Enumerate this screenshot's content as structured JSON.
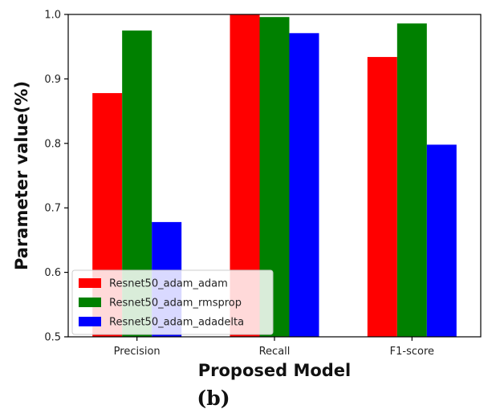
{
  "chart_data": {
    "type": "bar",
    "categories": [
      "Precision",
      "Recall",
      "F1-score"
    ],
    "series": [
      {
        "name": "Resnet50_adam_adam",
        "color": "#ff0000",
        "values": [
          0.878,
          1.0,
          0.934
        ]
      },
      {
        "name": "Resnet50_adam_rmsprop",
        "color": "#008000",
        "values": [
          0.975,
          0.996,
          0.986
        ]
      },
      {
        "name": "Resnet50_adam_adadelta",
        "color": "#0000ff",
        "values": [
          0.678,
          0.971,
          0.798
        ]
      }
    ],
    "xlabel": "Proposed Model",
    "ylabel": "Parameter value(%)",
    "ylim": [
      0.5,
      1.0
    ],
    "yticks": [
      "0.5",
      "0.6",
      "0.7",
      "0.8",
      "0.9",
      "1.0"
    ],
    "legend_position": "lower-left",
    "grid": false,
    "caption": "(b)"
  }
}
